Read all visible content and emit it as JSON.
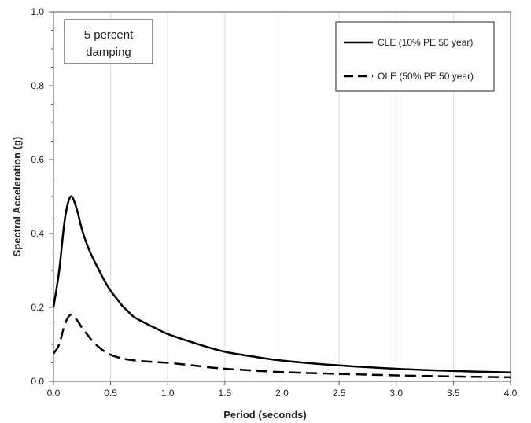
{
  "chart_data": {
    "type": "line",
    "xlabel": "Period (seconds)",
    "ylabel": "Spectral Acceleration (g)",
    "xlim": [
      0,
      4.0
    ],
    "ylim": [
      0,
      1.0
    ],
    "x_ticks": [
      "0.0",
      "0.5",
      "1.0",
      "1.5",
      "2.0",
      "2.5",
      "3.0",
      "3.5",
      "4.0"
    ],
    "y_ticks": [
      "0.0",
      "0.2",
      "0.4",
      "0.6",
      "0.8",
      "1.0"
    ],
    "grid": "vertical",
    "annotation": [
      "5 percent",
      "damping"
    ],
    "legend_position": "top-right",
    "series": [
      {
        "name": "CLE (10% PE 50 year)",
        "style": "solid",
        "color": "#000000",
        "points": [
          [
            0.0,
            0.2
          ],
          [
            0.05,
            0.3
          ],
          [
            0.1,
            0.44
          ],
          [
            0.15,
            0.5
          ],
          [
            0.2,
            0.47
          ],
          [
            0.25,
            0.41
          ],
          [
            0.3,
            0.365
          ],
          [
            0.35,
            0.33
          ],
          [
            0.4,
            0.3
          ],
          [
            0.45,
            0.27
          ],
          [
            0.5,
            0.245
          ],
          [
            0.55,
            0.225
          ],
          [
            0.6,
            0.205
          ],
          [
            0.65,
            0.19
          ],
          [
            0.7,
            0.175
          ],
          [
            0.8,
            0.158
          ],
          [
            0.9,
            0.143
          ],
          [
            1.0,
            0.128
          ],
          [
            1.25,
            0.102
          ],
          [
            1.5,
            0.08
          ],
          [
            1.75,
            0.067
          ],
          [
            2.0,
            0.056
          ],
          [
            2.5,
            0.043
          ],
          [
            3.0,
            0.034
          ],
          [
            3.5,
            0.028
          ],
          [
            4.0,
            0.024
          ]
        ]
      },
      {
        "name": "OLE (50% PE 50 year)",
        "style": "dashed",
        "color": "#000000",
        "points": [
          [
            0.0,
            0.075
          ],
          [
            0.05,
            0.1
          ],
          [
            0.1,
            0.155
          ],
          [
            0.15,
            0.18
          ],
          [
            0.2,
            0.168
          ],
          [
            0.25,
            0.145
          ],
          [
            0.3,
            0.125
          ],
          [
            0.35,
            0.106
          ],
          [
            0.4,
            0.092
          ],
          [
            0.45,
            0.08
          ],
          [
            0.5,
            0.072
          ],
          [
            0.6,
            0.062
          ],
          [
            0.7,
            0.057
          ],
          [
            0.8,
            0.054
          ],
          [
            1.0,
            0.05
          ],
          [
            1.25,
            0.042
          ],
          [
            1.5,
            0.034
          ],
          [
            2.0,
            0.025
          ],
          [
            2.5,
            0.02
          ],
          [
            3.0,
            0.016
          ],
          [
            3.5,
            0.013
          ],
          [
            4.0,
            0.011
          ]
        ]
      }
    ]
  }
}
